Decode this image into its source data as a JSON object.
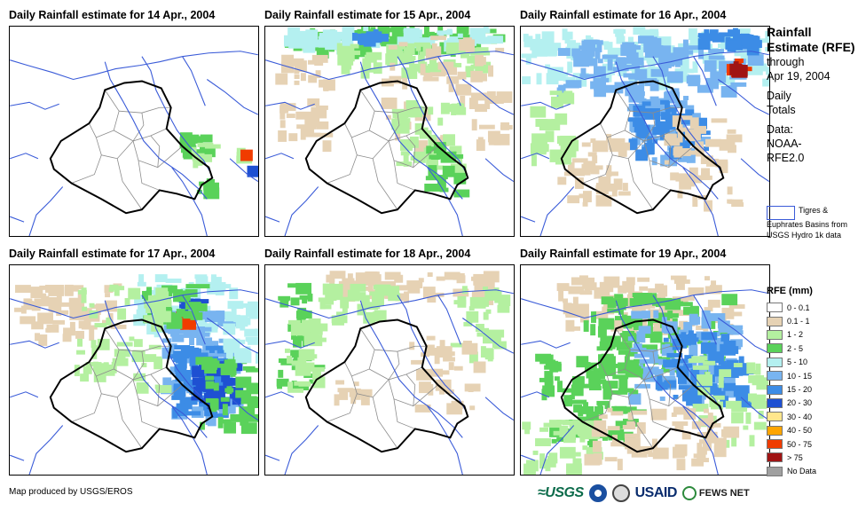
{
  "panels": [
    {
      "title": "Daily Rainfall estimate for 14 Apr., 2004"
    },
    {
      "title": "Daily Rainfall estimate for 15 Apr., 2004"
    },
    {
      "title": "Daily Rainfall estimate for 16 Apr., 2004"
    },
    {
      "title": "Daily Rainfall estimate for 17 Apr., 2004"
    },
    {
      "title": "Daily Rainfall estimate for 18 Apr., 2004"
    },
    {
      "title": "Daily Rainfall estimate for 19 Apr., 2004"
    }
  ],
  "side": {
    "title": "Rainfall Estimate (RFE)",
    "through": "through",
    "date": "Apr 19, 2004",
    "totals": "Daily Totals",
    "data_label": "Data:",
    "data_source": "NOAA-RFE2.0",
    "basins_note": "Tigres & Euphrates Basins from USGS Hydro 1k data"
  },
  "legend": {
    "title": "RFE (mm)",
    "items": [
      {
        "label": "0 - 0.1",
        "color": "#ffffff"
      },
      {
        "label": "0.1 - 1",
        "color": "#e6d2b4"
      },
      {
        "label": "1 - 2",
        "color": "#b4f0a0"
      },
      {
        "label": "2 - 5",
        "color": "#5ad25a"
      },
      {
        "label": "5 - 10",
        "color": "#b4f0f0"
      },
      {
        "label": "10 - 15",
        "color": "#78b4f0"
      },
      {
        "label": "15 - 20",
        "color": "#3c8ce6"
      },
      {
        "label": "20 - 30",
        "color": "#1e50d2"
      },
      {
        "label": "30 - 40",
        "color": "#ffe68c"
      },
      {
        "label": "40 - 50",
        "color": "#ffa500"
      },
      {
        "label": "50 - 75",
        "color": "#f03c00"
      },
      {
        "label": "> 75",
        "color": "#a01414"
      },
      {
        "label": "No Data",
        "color": "#a0a0a0"
      }
    ]
  },
  "footer": {
    "credit": "Map produced by USGS/EROS"
  },
  "logos": {
    "usgs": "USGS",
    "usaid": "USAID",
    "fews": "FEWS NET"
  },
  "colors": {
    "river": "#3a5bd8",
    "border": "#000000",
    "province": "#8c8c8c"
  },
  "chart_data": {
    "type": "heatmap",
    "title": "Rainfall Estimate (RFE) through Apr 19, 2004",
    "panels": [
      "14 Apr., 2004",
      "15 Apr., 2004",
      "16 Apr., 2004",
      "17 Apr., 2004",
      "18 Apr., 2004",
      "19 Apr., 2004"
    ],
    "classes_mm": [
      "0 - 0.1",
      "0.1 - 1",
      "1 - 2",
      "2 - 5",
      "5 - 10",
      "10 - 15",
      "15 - 20",
      "20 - 30",
      "30 - 40",
      "40 - 50",
      "50 - 75",
      "> 75",
      "No Data"
    ],
    "units": "mm"
  }
}
